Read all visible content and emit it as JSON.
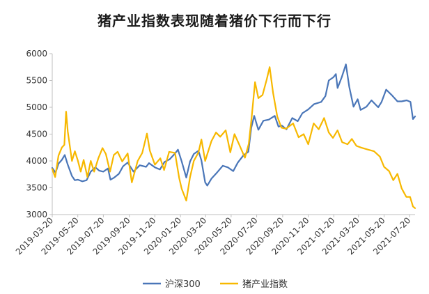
{
  "chart_data": {
    "type": "line",
    "title": "猪产业指数表现随着猪价下行而下行",
    "xlabel": "",
    "ylabel": "",
    "ylim": [
      3000,
      6000
    ],
    "yticks": [
      3000,
      3500,
      4000,
      4500,
      5000,
      5500,
      6000
    ],
    "xlim": [
      "2019-03-20",
      "2021-08-02"
    ],
    "xticks": [
      "2019-03-20",
      "2019-05-20",
      "2019-07-20",
      "2019-09-20",
      "2019-11-20",
      "2020-01-20",
      "2020-03-20",
      "2020-05-20",
      "2020-07-20",
      "2020-09-20",
      "2020-11-20",
      "2021-01-20",
      "2021-03-20",
      "2021-05-20",
      "2021-07-20"
    ],
    "grid": false,
    "legend": "bottom",
    "series": [
      {
        "name": "沪深300",
        "color": "#4a76b8",
        "points": [
          [
            "2019-03-20",
            3870
          ],
          [
            "2019-03-28",
            3780
          ],
          [
            "2019-04-04",
            3950
          ],
          [
            "2019-04-12",
            4020
          ],
          [
            "2019-04-19",
            4110
          ],
          [
            "2019-04-26",
            3930
          ],
          [
            "2019-05-06",
            3720
          ],
          [
            "2019-05-13",
            3640
          ],
          [
            "2019-05-20",
            3650
          ],
          [
            "2019-05-31",
            3620
          ],
          [
            "2019-06-10",
            3640
          ],
          [
            "2019-06-20",
            3800
          ],
          [
            "2019-07-01",
            3880
          ],
          [
            "2019-07-10",
            3820
          ],
          [
            "2019-07-20",
            3800
          ],
          [
            "2019-07-31",
            3860
          ],
          [
            "2019-08-06",
            3650
          ],
          [
            "2019-08-15",
            3690
          ],
          [
            "2019-08-26",
            3760
          ],
          [
            "2019-09-05",
            3900
          ],
          [
            "2019-09-16",
            3970
          ],
          [
            "2019-09-30",
            3800
          ],
          [
            "2019-10-15",
            3920
          ],
          [
            "2019-10-30",
            3890
          ],
          [
            "2019-11-06",
            3960
          ],
          [
            "2019-11-20",
            3880
          ],
          [
            "2019-12-02",
            3840
          ],
          [
            "2019-12-13",
            3980
          ],
          [
            "2019-12-25",
            4030
          ],
          [
            "2020-01-06",
            4130
          ],
          [
            "2020-01-14",
            4210
          ],
          [
            "2020-01-23",
            3990
          ],
          [
            "2020-02-03",
            3690
          ],
          [
            "2020-02-12",
            3990
          ],
          [
            "2020-02-21",
            4130
          ],
          [
            "2020-03-03",
            4190
          ],
          [
            "2020-03-10",
            4010
          ],
          [
            "2020-03-19",
            3600
          ],
          [
            "2020-03-24",
            3540
          ],
          [
            "2020-04-03",
            3670
          ],
          [
            "2020-04-17",
            3790
          ],
          [
            "2020-04-30",
            3910
          ],
          [
            "2020-05-12",
            3880
          ],
          [
            "2020-05-25",
            3810
          ],
          [
            "2020-06-05",
            3970
          ],
          [
            "2020-06-18",
            4100
          ],
          [
            "2020-06-30",
            4170
          ],
          [
            "2020-07-07",
            4620
          ],
          [
            "2020-07-14",
            4840
          ],
          [
            "2020-07-24",
            4580
          ],
          [
            "2020-08-05",
            4750
          ],
          [
            "2020-08-18",
            4770
          ],
          [
            "2020-09-01",
            4840
          ],
          [
            "2020-09-10",
            4640
          ],
          [
            "2020-09-18",
            4660
          ],
          [
            "2020-09-29",
            4590
          ],
          [
            "2020-10-13",
            4800
          ],
          [
            "2020-10-26",
            4740
          ],
          [
            "2020-11-06",
            4890
          ],
          [
            "2020-11-20",
            4960
          ],
          [
            "2020-12-04",
            5060
          ],
          [
            "2020-12-21",
            5100
          ],
          [
            "2020-12-31",
            5210
          ],
          [
            "2021-01-08",
            5500
          ],
          [
            "2021-01-19",
            5560
          ],
          [
            "2021-01-25",
            5620
          ],
          [
            "2021-01-29",
            5360
          ],
          [
            "2021-02-08",
            5560
          ],
          [
            "2021-02-18",
            5800
          ],
          [
            "2021-02-26",
            5380
          ],
          [
            "2021-03-08",
            5010
          ],
          [
            "2021-03-18",
            5150
          ],
          [
            "2021-03-25",
            4950
          ],
          [
            "2021-04-08",
            5010
          ],
          [
            "2021-04-20",
            5130
          ],
          [
            "2021-05-06",
            5000
          ],
          [
            "2021-05-14",
            5100
          ],
          [
            "2021-05-25",
            5330
          ],
          [
            "2021-06-07",
            5230
          ],
          [
            "2021-06-21",
            5110
          ],
          [
            "2021-07-01",
            5110
          ],
          [
            "2021-07-13",
            5130
          ],
          [
            "2021-07-22",
            5100
          ],
          [
            "2021-07-28",
            4780
          ],
          [
            "2021-08-02",
            4830
          ]
        ]
      },
      {
        "name": "猪产业指数",
        "color": "#f7b800",
        "points": [
          [
            "2019-03-20",
            3850
          ],
          [
            "2019-03-27",
            3700
          ],
          [
            "2019-04-04",
            4100
          ],
          [
            "2019-04-12",
            4250
          ],
          [
            "2019-04-18",
            4300
          ],
          [
            "2019-04-22",
            4920
          ],
          [
            "2019-04-26",
            4550
          ],
          [
            "2019-05-06",
            4000
          ],
          [
            "2019-05-13",
            4180
          ],
          [
            "2019-05-20",
            4010
          ],
          [
            "2019-05-27",
            3800
          ],
          [
            "2019-06-03",
            4020
          ],
          [
            "2019-06-12",
            3700
          ],
          [
            "2019-06-20",
            4000
          ],
          [
            "2019-06-28",
            3800
          ],
          [
            "2019-07-08",
            4050
          ],
          [
            "2019-07-18",
            4240
          ],
          [
            "2019-07-26",
            4130
          ],
          [
            "2019-08-05",
            3800
          ],
          [
            "2019-08-14",
            4110
          ],
          [
            "2019-08-23",
            4170
          ],
          [
            "2019-09-03",
            3990
          ],
          [
            "2019-09-16",
            4140
          ],
          [
            "2019-09-26",
            3600
          ],
          [
            "2019-10-10",
            4000
          ],
          [
            "2019-10-21",
            4150
          ],
          [
            "2019-11-01",
            4510
          ],
          [
            "2019-11-08",
            4190
          ],
          [
            "2019-11-20",
            3930
          ],
          [
            "2019-12-03",
            4050
          ],
          [
            "2019-12-12",
            3830
          ],
          [
            "2019-12-24",
            4170
          ],
          [
            "2020-01-07",
            4150
          ],
          [
            "2020-01-17",
            3680
          ],
          [
            "2020-01-23",
            3480
          ],
          [
            "2020-02-03",
            3260
          ],
          [
            "2020-02-12",
            3700
          ],
          [
            "2020-02-21",
            4000
          ],
          [
            "2020-03-03",
            4160
          ],
          [
            "2020-03-10",
            4400
          ],
          [
            "2020-03-19",
            4000
          ],
          [
            "2020-04-03",
            4370
          ],
          [
            "2020-04-14",
            4530
          ],
          [
            "2020-04-24",
            4450
          ],
          [
            "2020-05-07",
            4570
          ],
          [
            "2020-05-18",
            4160
          ],
          [
            "2020-05-28",
            4500
          ],
          [
            "2020-06-08",
            4310
          ],
          [
            "2020-06-22",
            4060
          ],
          [
            "2020-07-01",
            4320
          ],
          [
            "2020-07-08",
            4820
          ],
          [
            "2020-07-16",
            5470
          ],
          [
            "2020-07-24",
            5170
          ],
          [
            "2020-08-03",
            5230
          ],
          [
            "2020-08-13",
            5520
          ],
          [
            "2020-08-20",
            5750
          ],
          [
            "2020-08-28",
            5270
          ],
          [
            "2020-09-07",
            4830
          ],
          [
            "2020-09-17",
            4620
          ],
          [
            "2020-09-28",
            4600
          ],
          [
            "2020-10-15",
            4700
          ],
          [
            "2020-10-28",
            4440
          ],
          [
            "2020-11-09",
            4500
          ],
          [
            "2020-11-20",
            4310
          ],
          [
            "2020-12-03",
            4700
          ],
          [
            "2020-12-15",
            4590
          ],
          [
            "2020-12-28",
            4800
          ],
          [
            "2021-01-08",
            4530
          ],
          [
            "2021-01-18",
            4430
          ],
          [
            "2021-01-29",
            4570
          ],
          [
            "2021-02-09",
            4350
          ],
          [
            "2021-02-22",
            4310
          ],
          [
            "2021-03-04",
            4410
          ],
          [
            "2021-03-15",
            4280
          ],
          [
            "2021-03-26",
            4250
          ],
          [
            "2021-04-12",
            4210
          ],
          [
            "2021-04-26",
            4180
          ],
          [
            "2021-05-10",
            4080
          ],
          [
            "2021-05-20",
            3890
          ],
          [
            "2021-06-01",
            3810
          ],
          [
            "2021-06-11",
            3640
          ],
          [
            "2021-06-21",
            3760
          ],
          [
            "2021-07-01",
            3490
          ],
          [
            "2021-07-12",
            3330
          ],
          [
            "2021-07-21",
            3330
          ],
          [
            "2021-07-28",
            3150
          ],
          [
            "2021-08-02",
            3120
          ]
        ]
      }
    ]
  }
}
